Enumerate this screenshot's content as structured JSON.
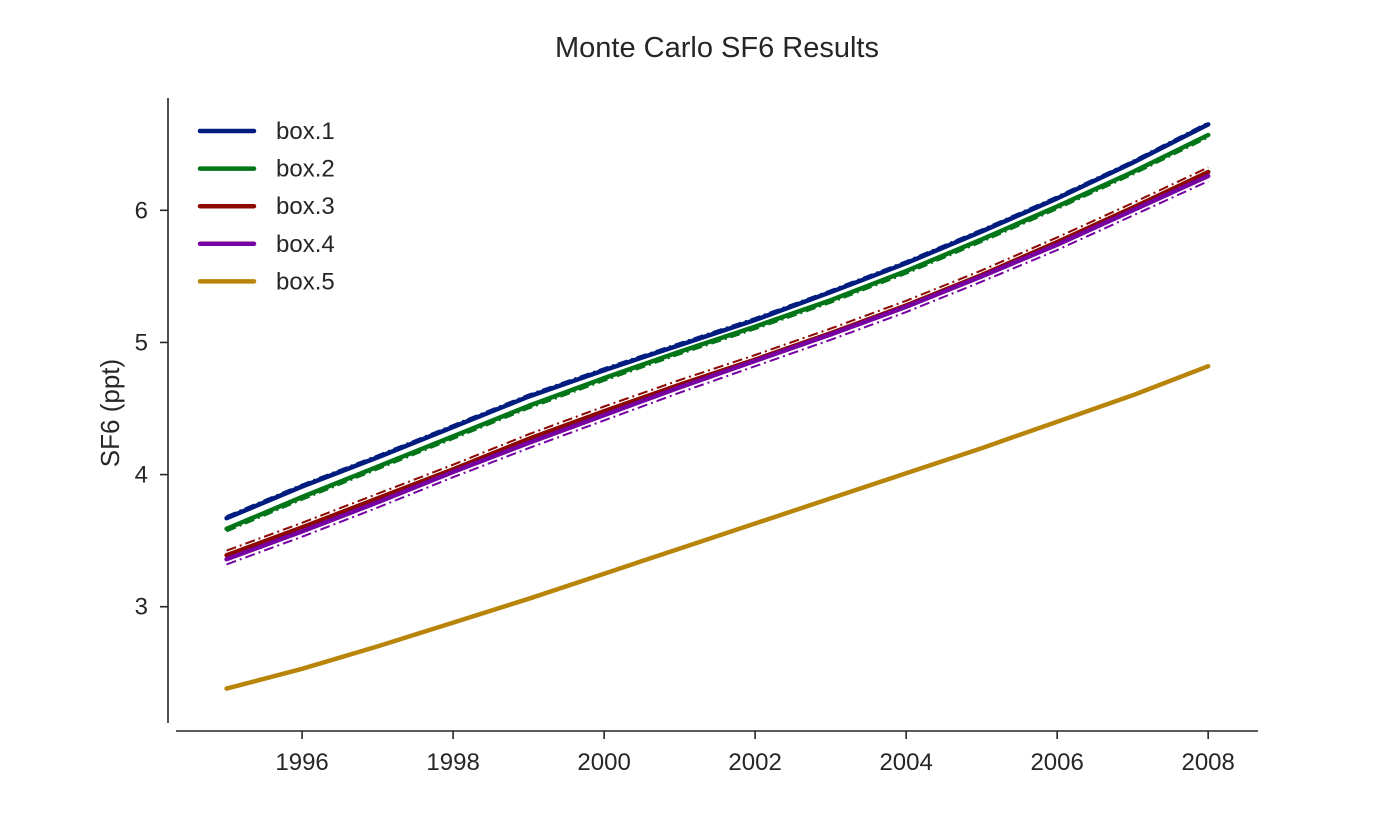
{
  "chart_data": {
    "type": "line",
    "title": "Monte Carlo SF6 Results",
    "xlabel": "",
    "ylabel": "SF6 (ppt)",
    "xlim": [
      1994.33,
      2008.66
    ],
    "ylim": [
      2.12,
      6.85
    ],
    "xticks": [
      "1996",
      "1998",
      "2000",
      "2002",
      "2004",
      "2006",
      "2008"
    ],
    "yticks": [
      "3",
      "4",
      "5",
      "6"
    ],
    "grid": false,
    "legend_position": "top-left",
    "x": [
      1995,
      1996,
      1997,
      1998,
      1999,
      2000,
      2001,
      2002,
      2003,
      2004,
      2005,
      2006,
      2007,
      2008
    ],
    "series": [
      {
        "name": "box.1",
        "color": "#001c7f",
        "values": [
          3.67,
          3.91,
          4.13,
          4.36,
          4.59,
          4.79,
          4.98,
          5.17,
          5.38,
          5.6,
          5.84,
          6.09,
          6.36,
          6.65
        ],
        "mc_offset": 0.015
      },
      {
        "name": "box.2",
        "color": "#017517",
        "values": [
          3.59,
          3.83,
          4.06,
          4.29,
          4.52,
          4.73,
          4.93,
          5.12,
          5.32,
          5.54,
          5.78,
          6.03,
          6.29,
          6.57
        ],
        "mc_offset": -0.02
      },
      {
        "name": "box.3",
        "color": "#8c0800",
        "values": [
          3.39,
          3.6,
          3.82,
          4.04,
          4.27,
          4.48,
          4.68,
          4.87,
          5.07,
          5.28,
          5.51,
          5.76,
          6.02,
          6.29
        ],
        "mc_offset": 0.035
      },
      {
        "name": "box.4",
        "color": "#7600a1",
        "values": [
          3.36,
          3.57,
          3.79,
          4.02,
          4.24,
          4.45,
          4.66,
          4.86,
          5.06,
          5.27,
          5.5,
          5.74,
          6.0,
          6.26
        ],
        "mc_offset": -0.04
      },
      {
        "name": "box.5",
        "color": "#b8850a",
        "values": [
          2.38,
          2.53,
          2.7,
          2.88,
          3.06,
          3.25,
          3.44,
          3.63,
          3.82,
          4.01,
          4.2,
          4.4,
          4.6,
          4.82
        ],
        "mc_offset": 0.0
      }
    ]
  }
}
